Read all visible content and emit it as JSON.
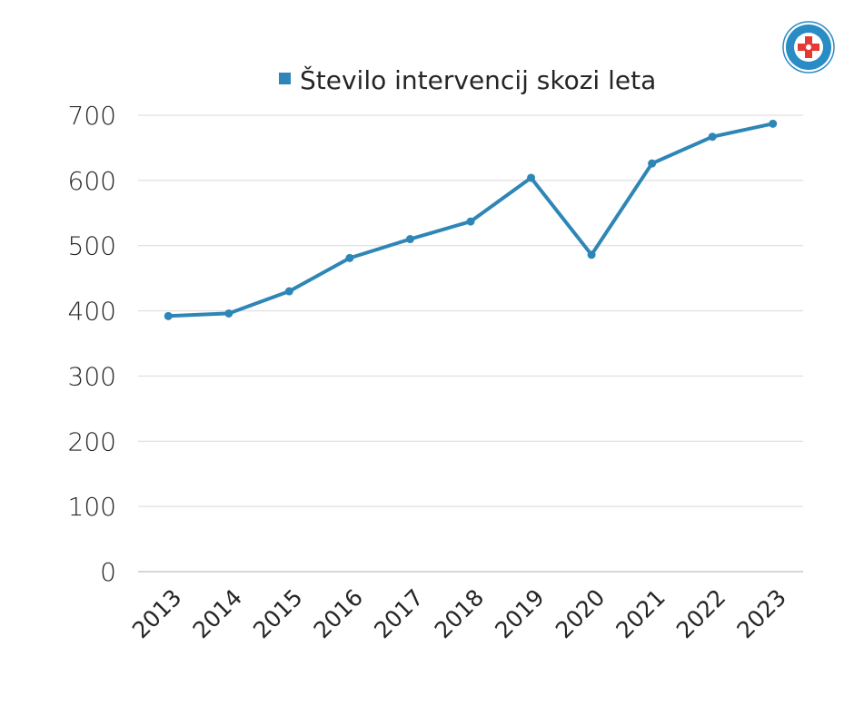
{
  "chart_data": {
    "type": "line",
    "categories": [
      "2013",
      "2014",
      "2015",
      "2016",
      "2017",
      "2018",
      "2019",
      "2020",
      "2021",
      "2022",
      "2023"
    ],
    "series": [
      {
        "name": "Število intervencij skozi leta",
        "values": [
          392,
          396,
          430,
          481,
          510,
          537,
          604,
          486,
          626,
          667,
          687
        ]
      }
    ],
    "ylim": [
      0,
      700
    ],
    "yticks": [
      "0",
      "100",
      "200",
      "300",
      "400",
      "500",
      "600",
      "700"
    ],
    "title": "",
    "xlabel": "",
    "ylabel": "",
    "grid": true,
    "legend": "top-center",
    "colors": {
      "series": "#2e86b6",
      "grid": "#d9d9d9"
    }
  },
  "logo": {
    "name": "gorska-resevalna-zveza-slovenije-logo",
    "text": "GORSKA REŠEVALNA ZVEZA SLOVENIJE"
  }
}
